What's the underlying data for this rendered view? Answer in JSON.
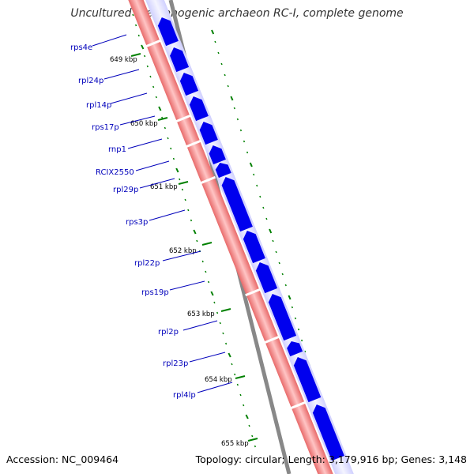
{
  "title": "Uncultured methanogenic archaeon RC-I, complete genome",
  "footer": {
    "accession": "Accession: NC_009464",
    "summary": "Topology: circular; Length: 3,179,916 bp; Genes: 3,148"
  },
  "colors": {
    "forward_genes": "#0000ee",
    "reverse_track": "#f07f7f",
    "backbone": "#888888",
    "tick_marks": "#008000",
    "labels": "#0000bb"
  },
  "ruler": [
    "649 kbp",
    "650 kbp",
    "651 kbp",
    "652 kbp",
    "653 kbp",
    "654 kbp",
    "655 kbp"
  ],
  "genes": [
    "rps4e",
    "rpl24p",
    "rpl14p",
    "rps17p",
    "rnp1",
    "RCIX2550",
    "rpl29p",
    "rps3p",
    "rpl22p",
    "rps19p",
    "rpl2p",
    "rpl23p",
    "rpl4lp"
  ]
}
